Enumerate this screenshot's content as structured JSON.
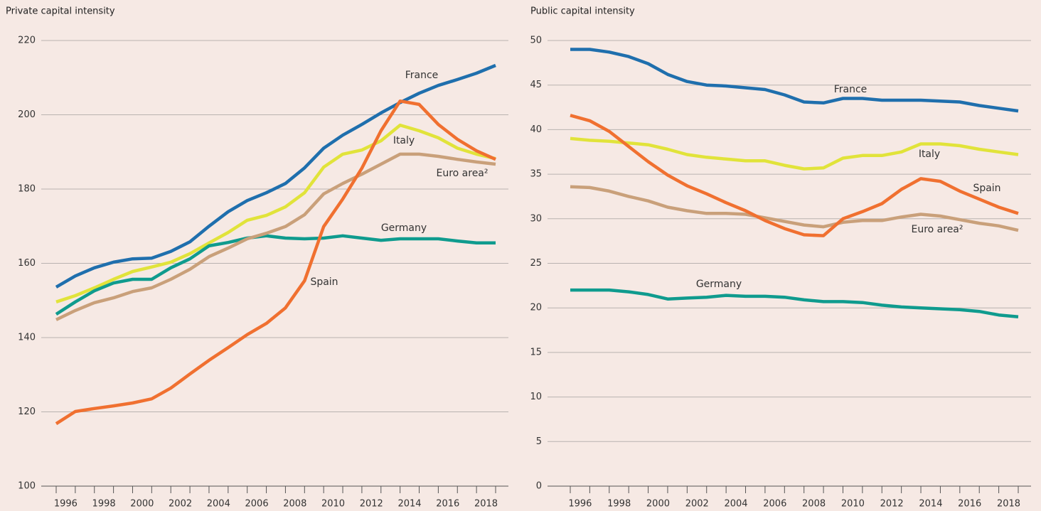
{
  "chart_data": [
    {
      "type": "line",
      "title": "Private capital intensity",
      "x": [
        1995,
        1996,
        1997,
        1998,
        1999,
        2000,
        2001,
        2002,
        2003,
        2004,
        2005,
        2006,
        2007,
        2008,
        2009,
        2010,
        2011,
        2012,
        2013,
        2014,
        2015,
        2016,
        2017,
        2018
      ],
      "xlim": [
        1995,
        2018
      ],
      "xticks": [
        1996,
        1998,
        2000,
        2002,
        2004,
        2006,
        2008,
        2010,
        2012,
        2014,
        2016,
        2018
      ],
      "xminorticks": [
        1995,
        1997,
        1999,
        2001,
        2003,
        2005,
        2007,
        2009,
        2011,
        2013,
        2015,
        2017
      ],
      "ylim": [
        100,
        220
      ],
      "yticks": [
        100,
        120,
        140,
        160,
        180,
        200,
        220
      ],
      "grid": true,
      "series": [
        {
          "name": "France",
          "color": "#1f6fad",
          "values": [
            153.6,
            156.6,
            158.8,
            160.3,
            161.2,
            161.4,
            163.2,
            165.8,
            170,
            173.9,
            176.9,
            179,
            181.5,
            185.7,
            191,
            194.5,
            197.4,
            200.5,
            203.3,
            205.8,
            207.9,
            209.5,
            211.2,
            213.3
          ]
        },
        {
          "name": "Italy",
          "color": "#e1e33a",
          "values": [
            149.6,
            151.3,
            153.4,
            155.7,
            157.8,
            159,
            160.3,
            162.6,
            165.5,
            168.3,
            171.6,
            172.9,
            175.2,
            179,
            185.9,
            189.4,
            190.5,
            193,
            197.2,
            195.7,
            193.8,
            191,
            189.4,
            188.2
          ]
        },
        {
          "name": "Germany",
          "color": "#0f9b8e",
          "values": [
            146.3,
            149.6,
            152.6,
            154.7,
            155.7,
            155.7,
            158.8,
            161.2,
            164.7,
            165.6,
            166.8,
            167.4,
            166.8,
            166.6,
            166.8,
            167.4,
            166.8,
            166.2,
            166.6,
            166.6,
            166.6,
            166,
            165.5,
            165.5
          ]
        },
        {
          "name": "Euro area²",
          "color": "#c9a07a",
          "values": [
            144.8,
            147.3,
            149.4,
            150.7,
            152.4,
            153.4,
            155.7,
            158.4,
            161.8,
            164.1,
            166.6,
            168.1,
            169.9,
            173.1,
            178.7,
            181.5,
            184,
            186.7,
            189.4,
            189.4,
            188.8,
            188,
            187.3,
            186.7
          ]
        },
        {
          "name": "Spain",
          "color": "#f07030",
          "values": [
            116.8,
            120.1,
            120.9,
            121.6,
            122.4,
            123.5,
            126.4,
            130.2,
            133.9,
            137.3,
            140.8,
            143.8,
            148,
            155.3,
            169.9,
            177.3,
            185.6,
            195.7,
            203.7,
            202.8,
            197.4,
            193.4,
            190.3,
            188
          ]
        }
      ]
    },
    {
      "type": "line",
      "title": "Public capital intensity",
      "x": [
        1995,
        1996,
        1997,
        1998,
        1999,
        2000,
        2001,
        2002,
        2003,
        2004,
        2005,
        2006,
        2007,
        2008,
        2009,
        2010,
        2011,
        2012,
        2013,
        2014,
        2015,
        2016,
        2017,
        2018
      ],
      "xlim": [
        1995,
        2018
      ],
      "xticks": [
        1996,
        1998,
        2000,
        2002,
        2004,
        2006,
        2008,
        2010,
        2012,
        2014,
        2016,
        2018
      ],
      "xminorticks": [
        1995,
        1997,
        1999,
        2001,
        2003,
        2005,
        2007,
        2009,
        2011,
        2013,
        2015,
        2017
      ],
      "ylim": [
        0,
        50
      ],
      "yticks": [
        0,
        5,
        10,
        15,
        20,
        25,
        30,
        35,
        40,
        45,
        50
      ],
      "grid": true,
      "series": [
        {
          "name": "France",
          "color": "#1f6fad",
          "values": [
            49,
            49,
            48.7,
            48.2,
            47.4,
            46.2,
            45.4,
            45,
            44.9,
            44.7,
            44.5,
            43.9,
            43.1,
            43,
            43.5,
            43.5,
            43.3,
            43.3,
            43.3,
            43.2,
            43.1,
            42.7,
            42.4,
            42.1
          ]
        },
        {
          "name": "Italy",
          "color": "#e1e33a",
          "values": [
            39,
            38.8,
            38.7,
            38.5,
            38.3,
            37.8,
            37.2,
            36.9,
            36.7,
            36.5,
            36.5,
            36,
            35.6,
            35.7,
            36.8,
            37.1,
            37.1,
            37.5,
            38.4,
            38.4,
            38.2,
            37.8,
            37.5,
            37.2
          ]
        },
        {
          "name": "Germany",
          "color": "#0f9b8e",
          "values": [
            22,
            22,
            22,
            21.8,
            21.5,
            21,
            21.1,
            21.2,
            21.4,
            21.3,
            21.3,
            21.2,
            20.9,
            20.7,
            20.7,
            20.6,
            20.3,
            20.1,
            20,
            19.9,
            19.8,
            19.6,
            19.2,
            19
          ]
        },
        {
          "name": "Euro area²",
          "color": "#c9a07a",
          "values": [
            33.6,
            33.5,
            33.1,
            32.5,
            32,
            31.3,
            30.9,
            30.6,
            30.6,
            30.5,
            30.1,
            29.7,
            29.3,
            29.1,
            29.6,
            29.8,
            29.8,
            30.2,
            30.5,
            30.3,
            29.9,
            29.5,
            29.2,
            28.7
          ]
        },
        {
          "name": "Spain",
          "color": "#f07030",
          "values": [
            41.6,
            41,
            39.8,
            38.1,
            36.4,
            34.9,
            33.7,
            32.8,
            31.8,
            30.9,
            29.8,
            28.9,
            28.2,
            28.1,
            30,
            30.8,
            31.7,
            33.3,
            34.5,
            34.2,
            33.1,
            32.2,
            31.3,
            30.6
          ]
        }
      ]
    }
  ]
}
